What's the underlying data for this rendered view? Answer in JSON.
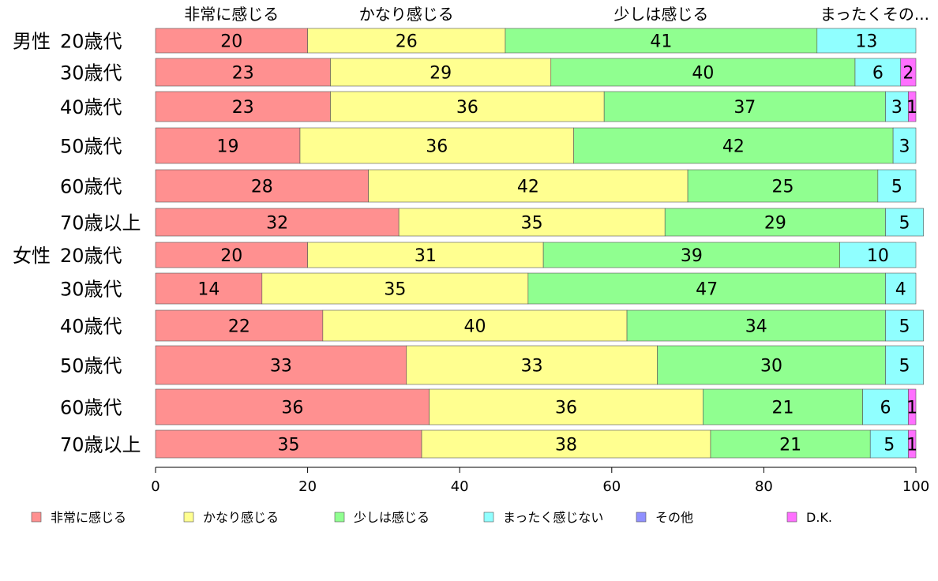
{
  "chart_data": {
    "type": "bar",
    "orientation": "horizontal",
    "stacked": true,
    "xlim": [
      0,
      100
    ],
    "x_ticks": [
      "0",
      "20",
      "40",
      "60",
      "80",
      "100"
    ],
    "column_headers": [
      "非常に感じる",
      "かなり感じる",
      "少しは感じる",
      "まったくその..."
    ],
    "groups": [
      {
        "label": "男性",
        "row_index": 0
      },
      {
        "label": "女性",
        "row_index": 6
      }
    ],
    "categories": [
      "20歳代",
      "30歳代",
      "40歳代",
      "50歳代",
      "60歳代",
      "70歳以上",
      "20歳代",
      "30歳代",
      "40歳代",
      "50歳代",
      "60歳代",
      "70歳以上"
    ],
    "series": [
      {
        "name": "非常に感じる",
        "color": "#ff9090",
        "values": [
          20,
          23,
          23,
          19,
          28,
          32,
          20,
          14,
          22,
          33,
          36,
          35
        ],
        "labels": [
          "20",
          "23",
          "23",
          "19",
          "28",
          "32",
          "20",
          "14",
          "22",
          "33",
          "36",
          "35"
        ]
      },
      {
        "name": "かなり感じる",
        "color": "#ffff90",
        "values": [
          26,
          29,
          36,
          36,
          42,
          35,
          31,
          35,
          40,
          33,
          36,
          38
        ],
        "labels": [
          "26",
          "29",
          "36",
          "36",
          "42",
          "35",
          "31",
          "35",
          "40",
          "33",
          "36",
          "38"
        ]
      },
      {
        "name": "少しは感じる",
        "color": "#90ff90",
        "values": [
          41,
          40,
          37,
          42,
          25,
          29,
          39,
          47,
          34,
          30,
          21,
          21
        ],
        "labels": [
          "41",
          "40",
          "37",
          "42",
          "25",
          "29",
          "39",
          "47",
          "34",
          "30",
          "21",
          "21"
        ]
      },
      {
        "name": "まったく感じない",
        "color": "#90ffff",
        "values": [
          13,
          6,
          3,
          3,
          5,
          5,
          10,
          4,
          5,
          5,
          6,
          5
        ],
        "labels": [
          "13",
          "6",
          "3",
          "3",
          "5",
          "5",
          "10",
          "4",
          "5",
          "5",
          "6",
          "5"
        ]
      },
      {
        "name": "その他",
        "color": "#9090ff",
        "values": [
          0,
          0,
          0,
          0,
          0,
          0,
          0,
          0,
          0,
          0,
          0,
          0
        ],
        "labels": [
          "",
          "",
          "",
          "",
          "",
          "",
          "",
          "",
          "",
          "",
          "",
          ""
        ]
      },
      {
        "name": "D.K.",
        "color": "#ff70ff",
        "values": [
          0,
          2,
          1,
          0,
          0,
          0,
          0,
          0,
          0,
          0,
          1,
          1
        ],
        "labels": [
          "",
          "2",
          "1",
          "",
          "",
          "",
          "",
          "",
          "",
          "",
          "1",
          "1"
        ]
      }
    ],
    "legend": {
      "placement": "bottom"
    },
    "grid": false
  }
}
